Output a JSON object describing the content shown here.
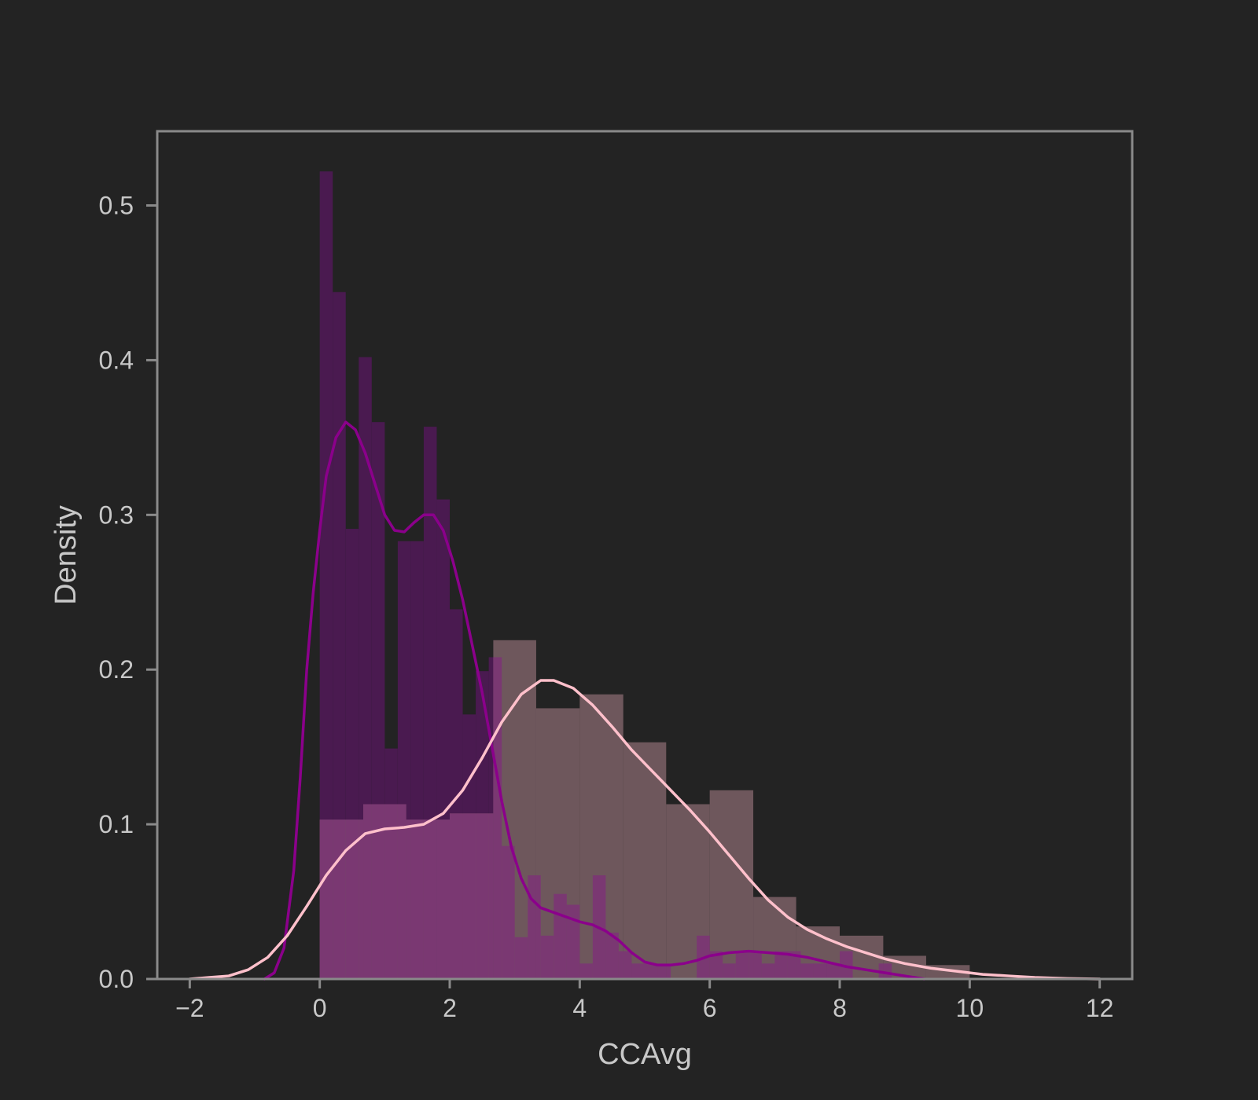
{
  "chart_data": {
    "type": "histogram",
    "title": "",
    "xlabel": "CCAvg",
    "ylabel": "Density",
    "xlim": [
      -2.5,
      12.5
    ],
    "ylim": [
      0,
      0.548
    ],
    "xticks": [
      -2,
      0,
      2,
      4,
      6,
      8,
      10,
      12
    ],
    "xtick_labels": [
      "−2",
      "0",
      "2",
      "4",
      "6",
      "8",
      "10",
      "12"
    ],
    "yticks": [
      0.0,
      0.1,
      0.2,
      0.3,
      0.4,
      0.5
    ],
    "ytick_labels": [
      "0.0",
      "0.1",
      "0.2",
      "0.3",
      "0.4",
      "0.5"
    ],
    "grid": false,
    "legend": "none",
    "colors": {
      "background": "#232323",
      "frame": "#8a8a8a",
      "text": "#c8c8c8"
    },
    "series": [
      {
        "hist_color": "#4a1a50",
        "kde_color": "#8b008b",
        "bars": [
          [
            0.0,
            0.2,
            0.522
          ],
          [
            0.2,
            0.4,
            0.444
          ],
          [
            0.4,
            0.6,
            0.291
          ],
          [
            0.6,
            0.8,
            0.402
          ],
          [
            0.8,
            1.0,
            0.36
          ],
          [
            1.0,
            1.2,
            0.149
          ],
          [
            1.2,
            1.4,
            0.283
          ],
          [
            1.4,
            1.6,
            0.283
          ],
          [
            1.6,
            1.8,
            0.357
          ],
          [
            1.8,
            2.0,
            0.31
          ],
          [
            2.0,
            2.2,
            0.239
          ],
          [
            2.2,
            2.4,
            0.171
          ],
          [
            2.4,
            2.6,
            0.199
          ],
          [
            2.6,
            2.8,
            0.208
          ],
          [
            2.8,
            3.0,
            0.086
          ],
          [
            3.0,
            3.2,
            0.027
          ],
          [
            3.2,
            3.4,
            0.067
          ],
          [
            3.4,
            3.6,
            0.028
          ],
          [
            3.6,
            3.8,
            0.055
          ],
          [
            3.8,
            4.0,
            0.048
          ],
          [
            4.0,
            4.2,
            0.01
          ],
          [
            4.2,
            4.4,
            0.067
          ],
          [
            4.4,
            4.6,
            0.03
          ],
          [
            4.6,
            4.8,
            0.018
          ],
          [
            4.8,
            5.0,
            0.01
          ],
          [
            5.0,
            5.2,
            0.01
          ],
          [
            5.2,
            5.4,
            0.01
          ],
          [
            5.4,
            5.6,
            0.0
          ],
          [
            5.6,
            5.8,
            0.0
          ],
          [
            5.8,
            6.0,
            0.028
          ],
          [
            6.0,
            6.2,
            0.018
          ],
          [
            6.2,
            6.4,
            0.01
          ],
          [
            6.4,
            6.6,
            0.018
          ],
          [
            6.6,
            6.8,
            0.018
          ],
          [
            6.8,
            7.0,
            0.01
          ],
          [
            7.0,
            7.2,
            0.018
          ],
          [
            7.2,
            7.4,
            0.018
          ],
          [
            7.4,
            7.6,
            0.01
          ],
          [
            7.6,
            7.8,
            0.01
          ],
          [
            7.8,
            8.0,
            0.01
          ],
          [
            8.0,
            8.2,
            0.018
          ],
          [
            8.2,
            8.4,
            0.0
          ],
          [
            8.4,
            8.6,
            0.0
          ],
          [
            8.6,
            8.8,
            0.01
          ]
        ],
        "kde": [
          [
            -0.85,
            0.0
          ],
          [
            -0.7,
            0.004
          ],
          [
            -0.55,
            0.02
          ],
          [
            -0.4,
            0.07
          ],
          [
            -0.3,
            0.13
          ],
          [
            -0.2,
            0.2
          ],
          [
            -0.1,
            0.25
          ],
          [
            0.0,
            0.29
          ],
          [
            0.1,
            0.325
          ],
          [
            0.25,
            0.35
          ],
          [
            0.4,
            0.36
          ],
          [
            0.55,
            0.355
          ],
          [
            0.7,
            0.34
          ],
          [
            0.85,
            0.32
          ],
          [
            1.0,
            0.3
          ],
          [
            1.15,
            0.29
          ],
          [
            1.3,
            0.289
          ],
          [
            1.45,
            0.295
          ],
          [
            1.6,
            0.3
          ],
          [
            1.75,
            0.3
          ],
          [
            1.9,
            0.29
          ],
          [
            2.05,
            0.27
          ],
          [
            2.2,
            0.245
          ],
          [
            2.35,
            0.215
          ],
          [
            2.5,
            0.185
          ],
          [
            2.65,
            0.15
          ],
          [
            2.8,
            0.115
          ],
          [
            2.95,
            0.085
          ],
          [
            3.1,
            0.065
          ],
          [
            3.25,
            0.052
          ],
          [
            3.4,
            0.046
          ],
          [
            3.6,
            0.043
          ],
          [
            3.8,
            0.04
          ],
          [
            4.0,
            0.037
          ],
          [
            4.2,
            0.035
          ],
          [
            4.4,
            0.031
          ],
          [
            4.6,
            0.025
          ],
          [
            4.8,
            0.017
          ],
          [
            5.0,
            0.011
          ],
          [
            5.2,
            0.009
          ],
          [
            5.4,
            0.009
          ],
          [
            5.6,
            0.01
          ],
          [
            5.8,
            0.012
          ],
          [
            6.0,
            0.015
          ],
          [
            6.3,
            0.017
          ],
          [
            6.6,
            0.018
          ],
          [
            6.9,
            0.017
          ],
          [
            7.2,
            0.016
          ],
          [
            7.5,
            0.014
          ],
          [
            7.8,
            0.011
          ],
          [
            8.1,
            0.008
          ],
          [
            8.4,
            0.006
          ],
          [
            8.7,
            0.004
          ],
          [
            9.0,
            0.002
          ],
          [
            9.3,
            0.0
          ]
        ]
      },
      {
        "hist_color": "#7b6066",
        "kde_color": "#ffc0cb",
        "bars": [
          [
            0.0,
            0.67,
            0.103
          ],
          [
            0.67,
            1.33,
            0.113
          ],
          [
            1.33,
            2.0,
            0.103
          ],
          [
            2.0,
            2.67,
            0.107
          ],
          [
            2.67,
            3.33,
            0.219
          ],
          [
            3.33,
            4.0,
            0.175
          ],
          [
            4.0,
            4.67,
            0.184
          ],
          [
            4.67,
            5.33,
            0.153
          ],
          [
            5.33,
            6.0,
            0.113
          ],
          [
            6.0,
            6.67,
            0.122
          ],
          [
            6.67,
            7.33,
            0.053
          ],
          [
            7.33,
            8.0,
            0.034
          ],
          [
            8.0,
            8.67,
            0.028
          ],
          [
            8.67,
            9.33,
            0.015
          ],
          [
            9.33,
            10.0,
            0.009
          ]
        ],
        "kde": [
          [
            -2.0,
            0.0
          ],
          [
            -1.7,
            0.001
          ],
          [
            -1.4,
            0.002
          ],
          [
            -1.1,
            0.006
          ],
          [
            -0.8,
            0.014
          ],
          [
            -0.5,
            0.028
          ],
          [
            -0.2,
            0.047
          ],
          [
            0.1,
            0.067
          ],
          [
            0.4,
            0.083
          ],
          [
            0.7,
            0.094
          ],
          [
            1.0,
            0.097
          ],
          [
            1.3,
            0.098
          ],
          [
            1.6,
            0.1
          ],
          [
            1.9,
            0.107
          ],
          [
            2.2,
            0.122
          ],
          [
            2.5,
            0.143
          ],
          [
            2.8,
            0.166
          ],
          [
            3.1,
            0.184
          ],
          [
            3.4,
            0.193
          ],
          [
            3.6,
            0.193
          ],
          [
            3.9,
            0.188
          ],
          [
            4.2,
            0.177
          ],
          [
            4.5,
            0.163
          ],
          [
            4.8,
            0.148
          ],
          [
            5.1,
            0.135
          ],
          [
            5.4,
            0.122
          ],
          [
            5.7,
            0.109
          ],
          [
            6.0,
            0.095
          ],
          [
            6.3,
            0.08
          ],
          [
            6.6,
            0.065
          ],
          [
            6.9,
            0.051
          ],
          [
            7.2,
            0.04
          ],
          [
            7.5,
            0.032
          ],
          [
            7.8,
            0.026
          ],
          [
            8.1,
            0.021
          ],
          [
            8.4,
            0.017
          ],
          [
            8.7,
            0.013
          ],
          [
            9.0,
            0.01
          ],
          [
            9.4,
            0.007
          ],
          [
            9.8,
            0.005
          ],
          [
            10.2,
            0.003
          ],
          [
            10.6,
            0.002
          ],
          [
            11.0,
            0.001
          ],
          [
            11.5,
            0.0003
          ],
          [
            12.0,
            0.0
          ]
        ]
      }
    ]
  }
}
